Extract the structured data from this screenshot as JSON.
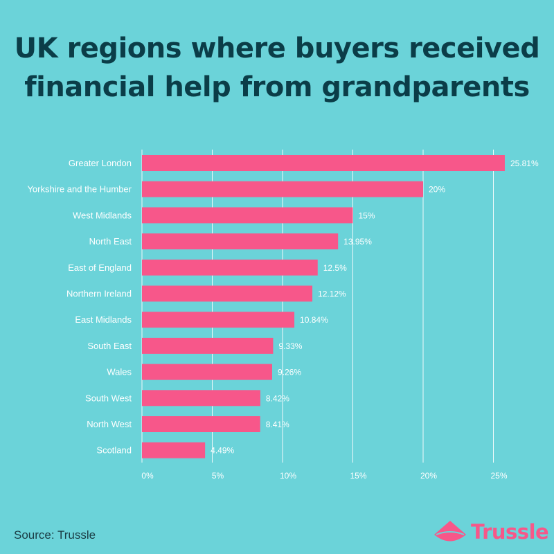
{
  "title_lines": [
    "UK regions where buyers received",
    "financial help from grandparents"
  ],
  "source": "Source: Trussle",
  "brand": {
    "name": "Trussle",
    "color": "#f75789",
    "icon": "trussle-logo-icon"
  },
  "colors": {
    "background": "#6bd3d9",
    "bar": "#f7578a",
    "title": "#0b3d48",
    "grid": "#ffffff"
  },
  "chart_data": {
    "type": "bar",
    "orientation": "horizontal",
    "categories": [
      "Greater London",
      "Yorkshire and the Humber",
      "West Midlands",
      "North East",
      "East of England",
      "Northern Ireland",
      "East Midlands",
      "South East",
      "Wales",
      "South West",
      "North West",
      "Scotland"
    ],
    "values": [
      25.81,
      20,
      15,
      13.95,
      12.5,
      12.12,
      10.84,
      9.33,
      9.26,
      8.42,
      8.41,
      4.49
    ],
    "value_labels": [
      "25.81%",
      "20%",
      "15%",
      "13.95%",
      "12.5%",
      "12.12%",
      "10.84%",
      "9.33%",
      "9.26%",
      "8.42%",
      "8.41%",
      "4.49%"
    ],
    "xticks": [
      0,
      5,
      10,
      15,
      20,
      25
    ],
    "xtick_labels": [
      "0%",
      "5%",
      "10%",
      "15%",
      "20%",
      "25%"
    ],
    "xlim": [
      0,
      25.81
    ],
    "grid": true
  }
}
